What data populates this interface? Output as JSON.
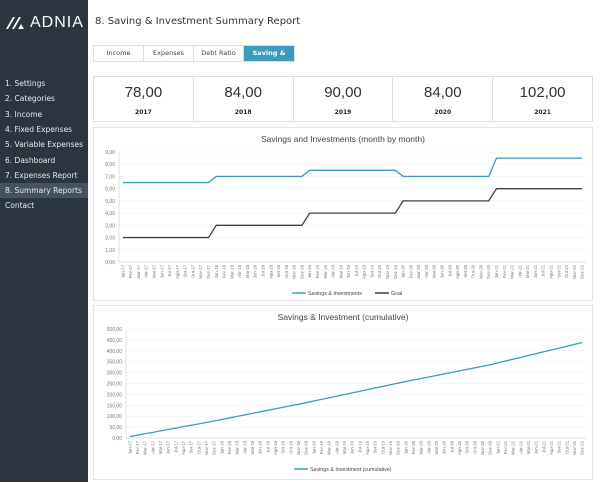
{
  "brand": {
    "name": "ADNIA"
  },
  "sidebar": {
    "items": [
      {
        "label": "1. Settings"
      },
      {
        "label": "2. Categories"
      },
      {
        "label": "3. Income"
      },
      {
        "label": "4. Fixed Expenses"
      },
      {
        "label": "5. Variable Expenses"
      },
      {
        "label": "6. Dashboard"
      },
      {
        "label": "7. Expenses Report"
      },
      {
        "label": "8. Summary Reports",
        "active": true
      },
      {
        "label": "Contact"
      }
    ]
  },
  "header": {
    "title": "8. Saving & Investment Summary Report"
  },
  "tabs": [
    {
      "label": "Income"
    },
    {
      "label": "Expenses"
    },
    {
      "label": "Debt Ratio"
    },
    {
      "label": "Saving & Invest.",
      "active": true
    }
  ],
  "kpis": [
    {
      "value": "78,00",
      "year": "2017"
    },
    {
      "value": "84,00",
      "year": "2018"
    },
    {
      "value": "90,00",
      "year": "2019"
    },
    {
      "value": "84,00",
      "year": "2020"
    },
    {
      "value": "102,00",
      "year": "2021"
    }
  ],
  "colors": {
    "sidebar": "#2b353f",
    "accent": "#3a9bbf",
    "goal": "#404040"
  },
  "chart_data": [
    {
      "type": "line",
      "title": "Savings and Investments (month by month)",
      "ylim": [
        0,
        9
      ],
      "yticks": [
        "0,00",
        "1,00",
        "2,00",
        "3,00",
        "4,00",
        "5,00",
        "6,00",
        "7,00",
        "8,00",
        "9,00"
      ],
      "grid": true,
      "legend": "bottom",
      "categories": [
        "Jan-17",
        "Fev-17",
        "Mar-17",
        "Abr-17",
        "Mai-17",
        "Jun-17",
        "Jul-17",
        "Ago-17",
        "Set-17",
        "Out-17",
        "Nov-17",
        "Dez-17",
        "Jan-18",
        "Fev-18",
        "Mar-18",
        "Abr-18",
        "Mai-18",
        "Jun-18",
        "Jul-18",
        "Ago-18",
        "Set-18",
        "Out-18",
        "Nov-18",
        "Dez-18",
        "Jan-19",
        "Fev-19",
        "Mar-19",
        "Abr-19",
        "Mai-19",
        "Jun-19",
        "Jul-19",
        "Ago-19",
        "Set-19",
        "Out-19",
        "Nov-19",
        "Dez-19",
        "Jan-20",
        "Fev-20",
        "Mar-20",
        "Abr-20",
        "Mai-20",
        "Jun-20",
        "Jul-20",
        "Ago-20",
        "Set-20",
        "Out-20",
        "Nov-20",
        "Dez-20",
        "Jan-21",
        "Fev-21",
        "Mar-21",
        "Abr-21",
        "Mai-21",
        "Jun-21",
        "Jul-21",
        "Ago-21",
        "Set-21",
        "Out-21",
        "Nov-21",
        "Dez-21"
      ],
      "series": [
        {
          "name": "Savings & Investments",
          "color": "#3a9bbf",
          "values": [
            6.5,
            6.5,
            6.5,
            6.5,
            6.5,
            6.5,
            6.5,
            6.5,
            6.5,
            6.5,
            6.5,
            6.5,
            7,
            7,
            7,
            7,
            7,
            7,
            7,
            7,
            7,
            7,
            7,
            7,
            7.5,
            7.5,
            7.5,
            7.5,
            7.5,
            7.5,
            7.5,
            7.5,
            7.5,
            7.5,
            7.5,
            7.5,
            7,
            7,
            7,
            7,
            7,
            7,
            7,
            7,
            7,
            7,
            7,
            7,
            8.5,
            8.5,
            8.5,
            8.5,
            8.5,
            8.5,
            8.5,
            8.5,
            8.5,
            8.5,
            8.5,
            8.5
          ]
        },
        {
          "name": "Goal",
          "color": "#404040",
          "values": [
            2,
            2,
            2,
            2,
            2,
            2,
            2,
            2,
            2,
            2,
            2,
            2,
            3,
            3,
            3,
            3,
            3,
            3,
            3,
            3,
            3,
            3,
            3,
            3,
            4,
            4,
            4,
            4,
            4,
            4,
            4,
            4,
            4,
            4,
            4,
            4,
            5,
            5,
            5,
            5,
            5,
            5,
            5,
            5,
            5,
            5,
            5,
            5,
            6,
            6,
            6,
            6,
            6,
            6,
            6,
            6,
            6,
            6,
            6,
            6
          ]
        }
      ]
    },
    {
      "type": "line",
      "title": "Savings & Investment (cumulative)",
      "ylim": [
        0,
        500
      ],
      "yticks": [
        "0,00",
        "50,00",
        "100,00",
        "150,00",
        "200,00",
        "250,00",
        "300,00",
        "350,00",
        "400,00",
        "450,00",
        "500,00"
      ],
      "grid": true,
      "legend": "bottom",
      "series": [
        {
          "name": "Savings & Investment (cumulative)",
          "color": "#3a9bbf",
          "values": [
            6.5,
            13,
            19.5,
            26,
            32.5,
            39,
            45.5,
            52,
            58.5,
            65,
            71.5,
            78,
            85,
            92,
            99,
            106,
            113,
            120,
            127,
            134,
            141,
            148,
            155,
            162,
            169.5,
            177,
            184.5,
            192,
            199.5,
            207,
            214.5,
            222,
            229.5,
            237,
            244.5,
            252,
            259,
            266,
            273,
            280,
            287,
            294,
            301,
            308,
            315,
            322,
            329,
            336,
            344.5,
            353,
            361.5,
            370,
            378.5,
            387,
            395.5,
            404,
            412.5,
            421,
            429.5,
            438
          ]
        }
      ]
    }
  ]
}
